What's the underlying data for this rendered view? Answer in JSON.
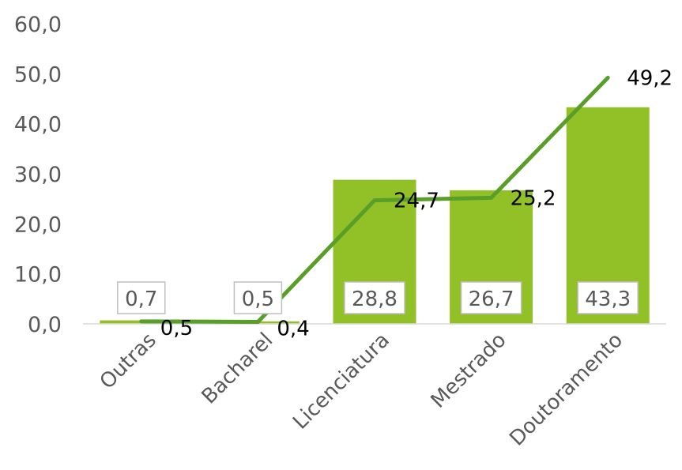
{
  "chart_data": {
    "type": "bar",
    "categories": [
      "Outras",
      "Bacharel",
      "Licenciatura",
      "Mestrado",
      "Doutoramento"
    ],
    "series": [
      {
        "kind": "bar",
        "values": [
          0.7,
          0.5,
          28.8,
          26.7,
          43.3
        ],
        "labels": [
          "0,7",
          "0,5",
          "28,8",
          "26,7",
          "43,3"
        ]
      },
      {
        "kind": "line",
        "values": [
          0.5,
          0.4,
          24.7,
          25.2,
          49.2
        ],
        "labels": [
          "0,5",
          "0,4",
          "24,7",
          "25,2",
          "49,2"
        ]
      }
    ],
    "yticks": [
      "0,0",
      "10,0",
      "20,0",
      "30,0",
      "40,0",
      "50,0",
      "60,0"
    ],
    "ylim": [
      0,
      60
    ],
    "grid": false,
    "legend": "none",
    "colors": {
      "bar": "#92C027",
      "line": "#5A9E2A",
      "bar_label_border": "#BFBFBF",
      "axis": "#D9D9D9"
    }
  }
}
